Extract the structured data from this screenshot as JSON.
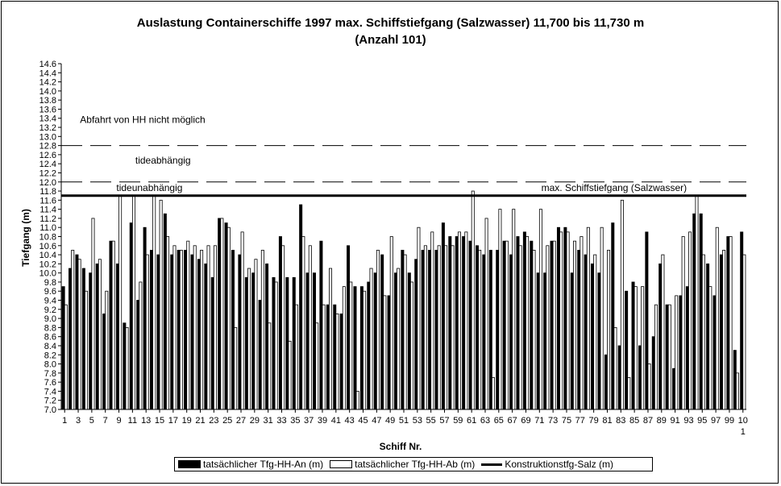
{
  "chart_data": {
    "type": "bar",
    "title_line1": "Auslastung Containerschiffe 1997 max. Schiffstiefgang (Salzwasser) 11,700 bis 11,730 m",
    "title_line2": "(Anzahl 101)",
    "xlabel": "Schiff Nr.",
    "ylabel": "Tiefgang (m)",
    "ylim": [
      7.0,
      14.6
    ],
    "ytick_step": 0.2,
    "x_tick_labels": [
      "1",
      "3",
      "5",
      "7",
      "9",
      "11",
      "13",
      "15",
      "17",
      "19",
      "21",
      "23",
      "25",
      "27",
      "29",
      "31",
      "33",
      "35",
      "37",
      "39",
      "41",
      "43",
      "45",
      "47",
      "49",
      "51",
      "53",
      "55",
      "57",
      "59",
      "61",
      "63",
      "65",
      "67",
      "69",
      "71",
      "73",
      "75",
      "77",
      "79",
      "81",
      "83",
      "85",
      "87",
      "89",
      "91",
      "93",
      "95",
      "97",
      "99"
    ],
    "x_tick_last": [
      "10",
      "1"
    ],
    "series": [
      {
        "name": "tatsächlicher Tfg-HH-An (m)",
        "style": "solid",
        "values": [
          9.7,
          10.1,
          10.4,
          10.1,
          10.0,
          10.2,
          9.1,
          10.7,
          10.2,
          8.9,
          11.1,
          9.4,
          11.0,
          10.5,
          10.4,
          11.3,
          10.4,
          10.5,
          10.5,
          10.4,
          10.3,
          10.2,
          9.9,
          11.2,
          11.1,
          10.5,
          10.4,
          9.9,
          10.0,
          9.4,
          10.2,
          9.9,
          10.8,
          9.9,
          9.9,
          11.5,
          10.0,
          10.0,
          10.7,
          9.3,
          9.3,
          9.1,
          10.6,
          9.7,
          9.7,
          9.8,
          10.0,
          10.4,
          9.5,
          10.0,
          10.5,
          10.0,
          10.3,
          10.5,
          10.5,
          10.5,
          11.1,
          10.8,
          10.8,
          10.8,
          10.7,
          10.6,
          10.4,
          10.5,
          10.5,
          10.7,
          10.4,
          10.8,
          10.9,
          10.7,
          10.0,
          10.0,
          10.7,
          11.0,
          11.0,
          10.0,
          10.5,
          10.4,
          10.2,
          10.0,
          8.2,
          11.1,
          8.4,
          9.6,
          9.8,
          8.4,
          10.9,
          8.6,
          10.2,
          9.3,
          7.9,
          9.5,
          9.7,
          11.3,
          11.3,
          10.2,
          9.5,
          10.4,
          10.8,
          8.3,
          10.9
        ],
        "extra_color": "#000000"
      },
      {
        "name": "tatsächlicher Tfg-HH-Ab (m)",
        "style": "hollow",
        "values": [
          9.3,
          10.5,
          10.3,
          9.6,
          11.2,
          10.3,
          9.6,
          10.7,
          11.7,
          8.8,
          11.7,
          9.8,
          10.4,
          11.7,
          11.6,
          10.8,
          10.6,
          10.5,
          10.7,
          10.6,
          10.5,
          10.6,
          10.6,
          11.2,
          11.0,
          8.8,
          10.9,
          10.1,
          10.3,
          10.5,
          8.9,
          9.8,
          10.6,
          8.5,
          9.3,
          10.8,
          10.6,
          8.9,
          9.3,
          10.1,
          9.1,
          9.7,
          9.8,
          7.4,
          9.6,
          10.1,
          10.5,
          9.5,
          10.8,
          10.1,
          10.4,
          9.8,
          11.0,
          10.6,
          10.9,
          10.6,
          10.6,
          10.6,
          10.9,
          10.9,
          11.8,
          10.5,
          11.2,
          7.7,
          11.4,
          10.7,
          11.4,
          10.6,
          10.8,
          10.5,
          11.4,
          10.6,
          10.7,
          10.9,
          10.9,
          10.7,
          10.8,
          11.0,
          10.4,
          11.0,
          10.5,
          8.8,
          11.6,
          7.7,
          9.7,
          9.7,
          8.0,
          9.3,
          10.4,
          9.3,
          9.5,
          10.8,
          10.9,
          11.7,
          10.4,
          9.7,
          11.0,
          10.5,
          10.8,
          7.8,
          10.4
        ]
      },
      {
        "name": "Konstruktionstfg-Salz (m)",
        "style": "line",
        "value": 11.7
      }
    ],
    "reference_lines": [
      {
        "value": 12.8,
        "style": "dashed"
      },
      {
        "value": 12.0,
        "style": "dashed"
      }
    ],
    "annotations": [
      {
        "text": "Abfahrt von HH nicht möglich",
        "y": 13.3,
        "anchor_ship": 12.5
      },
      {
        "text": "tideabhängig",
        "y": 12.4,
        "anchor_ship": 15.5
      },
      {
        "text": "tideunabhängig",
        "y": 11.8,
        "anchor_ship": 13.5
      },
      {
        "text": "max. Schiffstiefgang (Salzwasser)",
        "y": 11.8,
        "anchor_ship": 82
      }
    ]
  },
  "legend": {
    "item1": "tatsächlicher Tfg-HH-An (m)",
    "item2": "tatsächlicher Tfg-HH-Ab (m)",
    "item3": "Konstruktionstfg-Salz (m)"
  }
}
